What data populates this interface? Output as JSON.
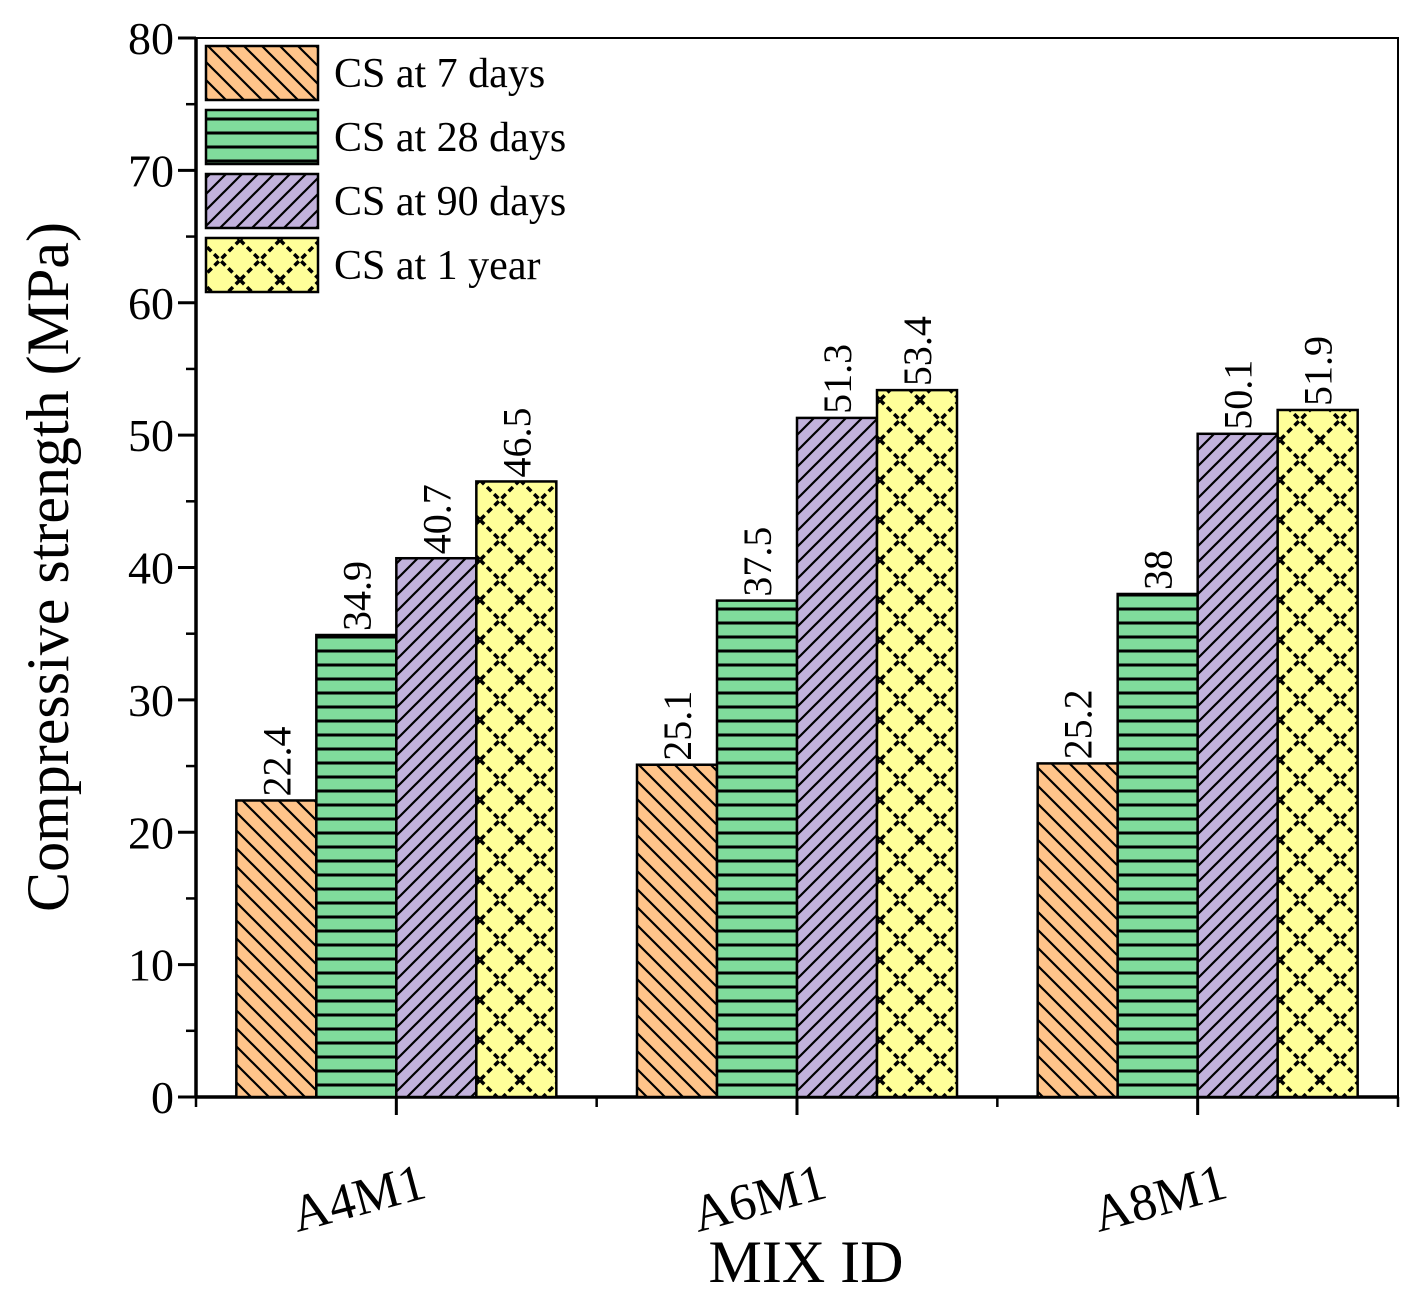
{
  "chart_data": {
    "type": "bar",
    "title": "",
    "xlabel": "MIX ID",
    "ylabel": "Compressive strength (MPa)",
    "ylim": [
      0,
      80
    ],
    "yticks": [
      0,
      10,
      20,
      30,
      40,
      50,
      60,
      70,
      80
    ],
    "categories": [
      "A4M1",
      "A6M1",
      "A8M1"
    ],
    "series": [
      {
        "name": "CS at 7 days",
        "values": [
          22.4,
          25.1,
          25.2
        ],
        "labels": [
          "22.4",
          "25.1",
          "25.2"
        ],
        "color": "#FFC48A",
        "pattern": "diag-down"
      },
      {
        "name": "CS at 28 days",
        "values": [
          34.9,
          37.5,
          38
        ],
        "labels": [
          "34.9",
          "37.5",
          "38"
        ],
        "color": "#80DC9C",
        "pattern": "horizontal"
      },
      {
        "name": "CS at 90 days",
        "values": [
          40.7,
          51.3,
          50.1
        ],
        "labels": [
          "40.7",
          "51.3",
          "50.1"
        ],
        "color": "#C2B2DC",
        "pattern": "diag-up"
      },
      {
        "name": "CS at 1 year",
        "values": [
          46.5,
          53.4,
          51.9
        ],
        "labels": [
          "46.5",
          "53.4",
          "51.9"
        ],
        "color": "#FFFF99",
        "pattern": "crosshatch"
      }
    ],
    "legend_position": "top-left",
    "grid": false
  }
}
